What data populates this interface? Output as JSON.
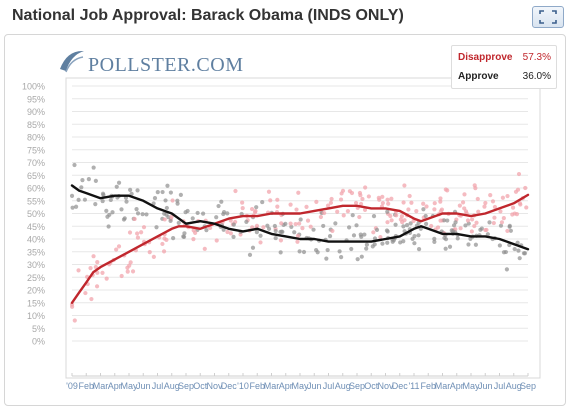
{
  "title": "National Job Approval: Barack Obama (INDS ONLY)",
  "logo": {
    "brand": "POLLSTER",
    "suffix": ".COM"
  },
  "colors": {
    "disapprove": "#c0272d",
    "approve": "#111111",
    "disapprove_dots": "#f2a4ac",
    "approve_dots": "#8f8f8f",
    "grid": "#e7e7e7",
    "axis_text": "#a8a8a8",
    "month_text": "#6f8fb5"
  },
  "legend": [
    {
      "name": "Disapprove",
      "value": "57.3%"
    },
    {
      "name": "Approve",
      "value": "36.0%"
    }
  ],
  "chart_data": {
    "type": "line",
    "title": "National Job Approval: Barack Obama (INDS ONLY)",
    "ylim": [
      0,
      100
    ],
    "y_ticks": [
      "100%",
      "95%",
      "90%",
      "85%",
      "80%",
      "75%",
      "70%",
      "65%",
      "60%",
      "55%",
      "50%",
      "45%",
      "40%",
      "35%",
      "30%",
      "25%",
      "20%",
      "15%",
      "10%",
      "5%",
      "0%"
    ],
    "x_ticks": [
      "'09",
      "Feb",
      "Mar",
      "Apr",
      "May",
      "Jun",
      "Jul",
      "Aug",
      "Sep",
      "Oct",
      "Nov",
      "Dec",
      "'10",
      "Feb",
      "Mar",
      "Apr",
      "May",
      "Jun",
      "Jul",
      "Aug",
      "Sep",
      "Oct",
      "Nov",
      "Dec",
      "'11",
      "Feb",
      "Mar",
      "Apr",
      "May",
      "Jun",
      "Jul",
      "Aug",
      "Sep"
    ],
    "x_unit": "month index from Jan 2009",
    "xlim": [
      0,
      32
    ],
    "grid": true,
    "legend_position": "top-right",
    "series": [
      {
        "name": "Disapprove",
        "x": [
          0,
          0.5,
          1,
          1.5,
          2,
          3,
          4,
          5,
          6,
          7,
          7.5,
          8,
          9,
          10,
          11,
          12,
          13,
          14,
          15,
          16,
          17,
          18,
          19,
          20,
          21,
          22,
          23,
          24,
          24.5,
          25,
          26,
          27,
          28,
          29,
          30,
          31,
          32
        ],
        "y": [
          15,
          19,
          23,
          27,
          29,
          32,
          35,
          38,
          41,
          44,
          45,
          45,
          44,
          46,
          48,
          49,
          49,
          50,
          50,
          50,
          51,
          52,
          53,
          53,
          52,
          52,
          51,
          48,
          47,
          48,
          50,
          50,
          49,
          50,
          52,
          54,
          57.3
        ]
      },
      {
        "name": "Approve",
        "x": [
          0,
          0.5,
          1,
          2,
          3,
          4,
          5,
          6,
          7,
          8,
          9,
          10,
          11,
          12,
          13,
          14,
          15,
          16,
          17,
          18,
          19,
          20,
          21,
          22,
          23,
          24,
          24.5,
          25,
          26,
          27,
          28,
          29,
          30,
          31,
          32
        ],
        "y": [
          61,
          59,
          58,
          56,
          57,
          57,
          55,
          52,
          50,
          46,
          47,
          46,
          44,
          43,
          44,
          42,
          41,
          40,
          40,
          39,
          39,
          39,
          39,
          40,
          41,
          44,
          45,
          44,
          42,
          42,
          41,
          41,
          40,
          38,
          36
        ]
      }
    ]
  }
}
